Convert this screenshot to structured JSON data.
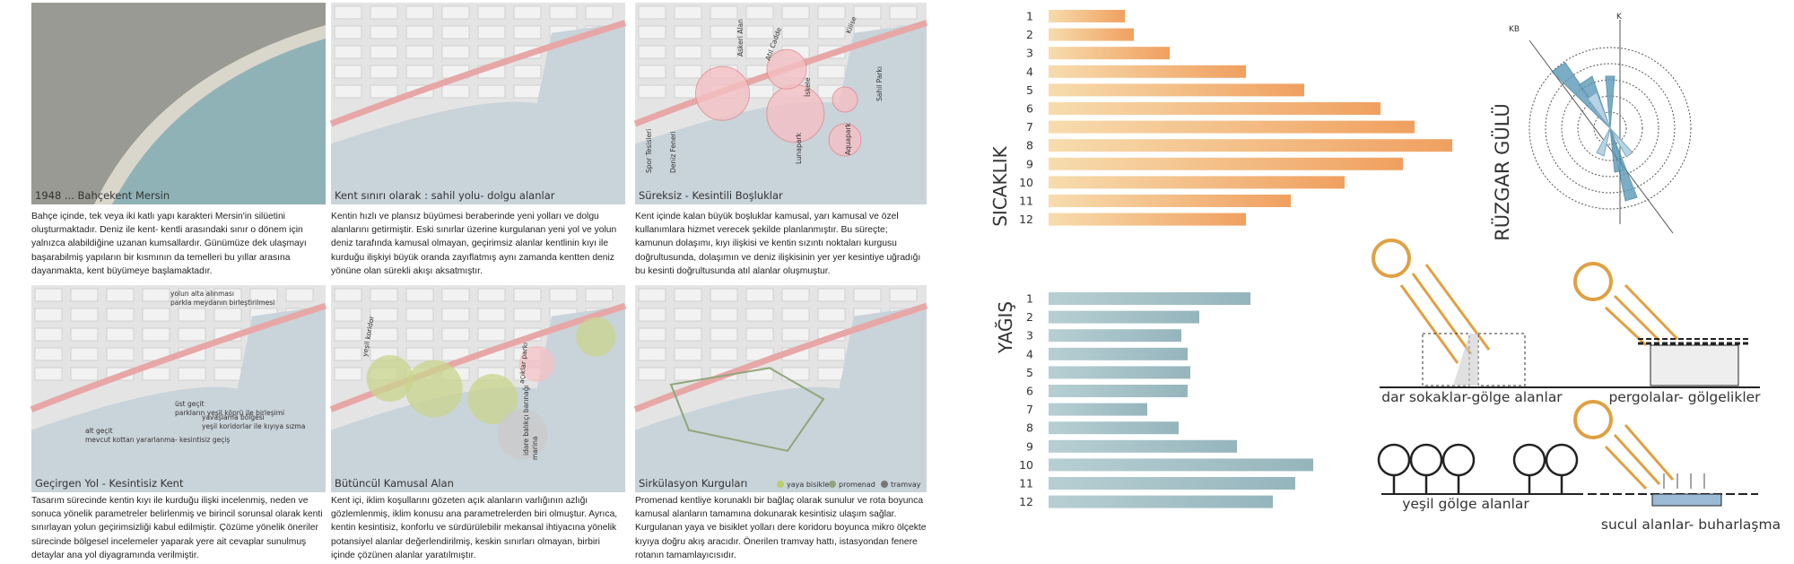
{
  "panels": [
    {
      "caption": "1948 ... Bahçekent Mersin",
      "text": "Bahçe içinde, tek veya iki katlı yapı karakteri Mersin'in silüetini oluşturmaktadır. Deniz ile kent- kentli arasındaki sınır o dönem için yalnızca alabildiğine uzanan kumsallardır. Günümüze dek ulaşmayı başarabilmiş yapıların bir kısmının da temelleri bu yıllar arasına dayanmakta, kent büyümeye başlamaktadır.",
      "labels": []
    },
    {
      "caption": "Kent sınırı olarak : sahil yolu- dolgu alanlar",
      "text": "Kentin hızlı ve plansız büyümesi beraberinde yeni yolları ve dolgu alanlarını getirmiştir. Eski sınırlar üzerine kurgulanan yeni yol ve yolun deniz tarafında kamusal olmayan, geçirimsiz alanlar kentlinin kıyı ile kurduğu ilişkiyi büyük oranda zayıflatmış aynı zamanda kentten deniz yönüne olan sürekli akışı aksatmıştır.",
      "labels": []
    },
    {
      "caption": "Süreksiz - Kesintili Boşluklar",
      "text": "Kent içinde kalan büyük boşluklar kamusal, yarı kamusal ve özel kullanımlara hizmet verecek şekilde planlanmıştır. Bu süreçte; kamunun dolaşımı, kıyı ilişkisi ve kentin sızıntı noktaları kurgusu doğrultusunda, dolaşımın ve deniz ilişkisinin yer yer kesintiye uğradığı bu kesinti doğrultusunda atıl alanlar oluşmuştur.",
      "labels": [
        "Spor Tesisleri",
        "Deniz Feneri",
        "Askeri Alan",
        "Atıl Cadde",
        "İskele",
        "Lunapark",
        "Kilise",
        "Aquapark",
        "Sahil Parkı"
      ]
    },
    {
      "caption": "Geçirgen Yol - Kesintisiz Kent",
      "text": "Tasarım sürecinde kentin kıyı ile kurduğu ilişki incelenmiş, neden ve sonuca yönelik parametreler belirlenmiş ve birincil sorunsal olarak kenti sınırlayan yolun geçirimsizliği kabul edilmiştir. Çözüme yönelik öneriler sürecinde bölgesel incelemeler yaparak yere ait cevaplar sunulmuş detaylar ana yol diyagramında verilmiştir.",
      "labels": [
        "yolun alta alınması",
        "parkla meydanın birleştirilmesi",
        "yavaşlama bölgesi",
        "yeşil koridorlar ile kıyıya sızma",
        "üst geçit",
        "parkların yeşil köprü ile birleşimi",
        "alt geçit",
        "mevcut kottan yararlanma- kesintisiz geçiş"
      ]
    },
    {
      "caption": "Bütüncül Kamusal Alan",
      "text": "Kent içi, iklim koşullarını gözeten açık alanların varlığının azlığı gözlemlenmiş, iklim konusu ana parametrelerden biri olmuştur. Ayrıca, kentin kesintisiz, konforlu ve sürdürülebilir mekansal ihtiyacına yönelik potansiyel alanlar değerlendirilmiş, keskin sınırları olmayan, birbiri içinde çözünen alanlar yaratılmıştır.",
      "labels": [
        "yeşil koridor",
        "açıklar parkı",
        "idare balıkçı barınağı",
        "marina"
      ]
    },
    {
      "caption": "Sirkülasyon Kurguları",
      "text": "Promenad kentliye korunaklı bir bağlaç olarak sunulur ve rota boyunca kamusal alanların tamamına dokunarak kesintisiz ulaşım sağlar. Kurgulanan yaya ve bisiklet yolları dere koridoru boyunca mikro ölçekte kıyıya doğru akış aracıdır. Önerilen tramvay hattı, istasyondan fenere rotanın tamamlayıcısıdır.",
      "labels": []
    }
  ],
  "legend": [
    {
      "name": "yaya bisiklet",
      "color": "#b9cf6a"
    },
    {
      "name": "promenad",
      "color": "#8fa67a"
    },
    {
      "name": "tramvay",
      "color": "#777777"
    }
  ],
  "chart_data": [
    {
      "type": "bar",
      "ylabel": "SICAKLIK",
      "categories": [
        "1",
        "2",
        "3",
        "4",
        "5",
        "6",
        "7",
        "8",
        "9",
        "10",
        "11",
        "12"
      ],
      "values": [
        85,
        95,
        135,
        220,
        285,
        370,
        408,
        450,
        395,
        330,
        270,
        220
      ],
      "color": "#f2c48c"
    },
    {
      "type": "bar",
      "ylabel": "YAĞIŞ",
      "categories": [
        "1",
        "2",
        "3",
        "4",
        "5",
        "6",
        "7",
        "8",
        "9",
        "10",
        "11",
        "12"
      ],
      "values": [
        225,
        168,
        148,
        155,
        158,
        155,
        110,
        145,
        210,
        295,
        275,
        250
      ],
      "color": "#a3c0c6"
    }
  ],
  "wind_rose": {
    "title": "RÜZGAR GÜLÜ",
    "directions": [
      "KB",
      "K"
    ]
  },
  "diagrams": [
    "dar sokaklar-gölge alanlar",
    "pergolalar- gölgelikler",
    "yeşil gölge alanlar",
    "sucul alanlar- buharlaşma"
  ]
}
